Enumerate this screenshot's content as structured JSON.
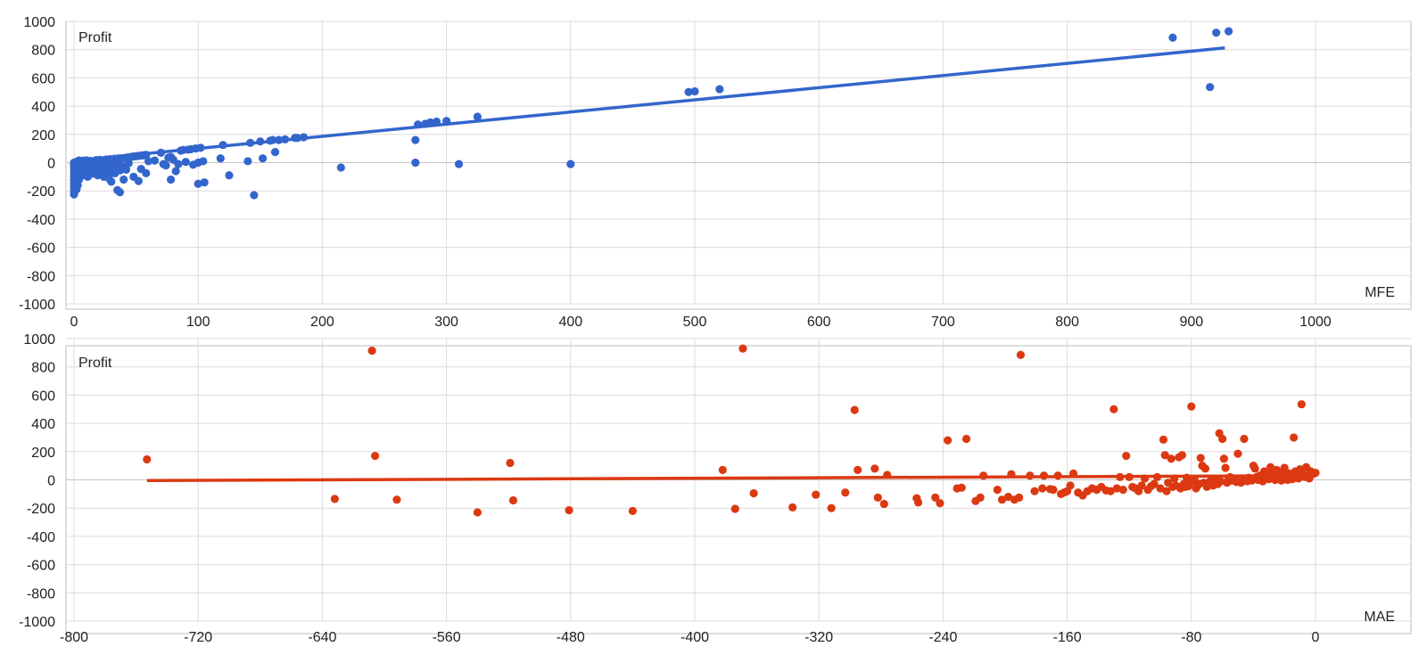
{
  "chart_data": [
    {
      "type": "scatter",
      "ylabel": "Profit",
      "xlabel": "MFE",
      "xlim": [
        0,
        1000
      ],
      "ylim": [
        -1000,
        1000
      ],
      "xticks": [
        "0",
        "100",
        "200",
        "300",
        "400",
        "500",
        "600",
        "700",
        "800",
        "900",
        "1000"
      ],
      "yticks": [
        "1000",
        "800",
        "600",
        "400",
        "200",
        "0",
        "-200",
        "-400",
        "-600",
        "-800",
        "-1000"
      ],
      "grid": true,
      "color": "#3366cc",
      "trendline": {
        "x": [
          0,
          927
        ],
        "y": [
          14,
          812
        ]
      },
      "points": [
        [
          0,
          -225
        ],
        [
          0,
          -200
        ],
        [
          0,
          -175
        ],
        [
          0,
          -150
        ],
        [
          0,
          -125
        ],
        [
          0,
          -100
        ],
        [
          0,
          -75
        ],
        [
          0,
          -50
        ],
        [
          0,
          -25
        ],
        [
          0,
          0
        ],
        [
          0,
          -10
        ],
        [
          1,
          -180
        ],
        [
          1,
          -140
        ],
        [
          1,
          -90
        ],
        [
          1,
          -60
        ],
        [
          1,
          -20
        ],
        [
          2,
          -190
        ],
        [
          2,
          -130
        ],
        [
          2,
          -70
        ],
        [
          2,
          -30
        ],
        [
          2,
          5
        ],
        [
          3,
          -160
        ],
        [
          3,
          -110
        ],
        [
          3,
          -40
        ],
        [
          3,
          10
        ],
        [
          4,
          -120
        ],
        [
          4,
          -80
        ],
        [
          4,
          -15
        ],
        [
          4,
          15
        ],
        [
          5,
          -100
        ],
        [
          5,
          -50
        ],
        [
          5,
          -5
        ],
        [
          6,
          -70
        ],
        [
          6,
          -20
        ],
        [
          6,
          12
        ],
        [
          7,
          -90
        ],
        [
          7,
          -35
        ],
        [
          7,
          8
        ],
        [
          8,
          -60
        ],
        [
          8,
          -10
        ],
        [
          8,
          14
        ],
        [
          9,
          -75
        ],
        [
          9,
          -25
        ],
        [
          10,
          -45
        ],
        [
          10,
          5
        ],
        [
          10,
          16
        ],
        [
          11,
          -100
        ],
        [
          11,
          -30
        ],
        [
          11,
          10
        ],
        [
          12,
          -65
        ],
        [
          12,
          -8
        ],
        [
          13,
          -50
        ],
        [
          13,
          12
        ],
        [
          14,
          -80
        ],
        [
          14,
          -20
        ],
        [
          15,
          -40
        ],
        [
          15,
          10
        ],
        [
          16,
          -55
        ],
        [
          16,
          -5
        ],
        [
          17,
          -70
        ],
        [
          17,
          8
        ],
        [
          18,
          -30
        ],
        [
          18,
          18
        ],
        [
          19,
          -90
        ],
        [
          19,
          -10
        ],
        [
          20,
          -50
        ],
        [
          20,
          12
        ],
        [
          21,
          -25
        ],
        [
          21,
          20
        ],
        [
          22,
          -60
        ],
        [
          22,
          0
        ],
        [
          23,
          -35
        ],
        [
          23,
          15
        ],
        [
          24,
          -100
        ],
        [
          24,
          -15
        ],
        [
          25,
          -70
        ],
        [
          25,
          10
        ],
        [
          26,
          -40
        ],
        [
          26,
          22
        ],
        [
          27,
          -20
        ],
        [
          27,
          5
        ],
        [
          28,
          -110
        ],
        [
          28,
          -45
        ],
        [
          29,
          -10
        ],
        [
          29,
          25
        ],
        [
          30,
          -135
        ],
        [
          30,
          -60
        ],
        [
          31,
          -25
        ],
        [
          31,
          20
        ],
        [
          32,
          -50
        ],
        [
          32,
          8
        ],
        [
          33,
          -75
        ],
        [
          33,
          28
        ],
        [
          34,
          -30
        ],
        [
          34,
          12
        ],
        [
          35,
          -195
        ],
        [
          35,
          -40
        ],
        [
          36,
          -15
        ],
        [
          36,
          30
        ],
        [
          37,
          -210
        ],
        [
          37,
          -55
        ],
        [
          38,
          -20
        ],
        [
          38,
          30
        ],
        [
          40,
          -120
        ],
        [
          40,
          32
        ],
        [
          42,
          -50
        ],
        [
          42,
          35
        ],
        [
          44,
          -5
        ],
        [
          44,
          38
        ],
        [
          46,
          40
        ],
        [
          48,
          -100
        ],
        [
          48,
          44
        ],
        [
          50,
          45
        ],
        [
          52,
          -130
        ],
        [
          52,
          48
        ],
        [
          54,
          -45
        ],
        [
          54,
          50
        ],
        [
          56,
          52
        ],
        [
          58,
          -75
        ],
        [
          58,
          55
        ],
        [
          60,
          10
        ],
        [
          65,
          15
        ],
        [
          70,
          70
        ],
        [
          72,
          -10
        ],
        [
          74,
          -20
        ],
        [
          76,
          35
        ],
        [
          78,
          -120
        ],
        [
          78,
          40
        ],
        [
          80,
          20
        ],
        [
          82,
          -60
        ],
        [
          84,
          -10
        ],
        [
          86,
          85
        ],
        [
          88,
          90
        ],
        [
          90,
          5
        ],
        [
          92,
          92
        ],
        [
          94,
          95
        ],
        [
          96,
          -15
        ],
        [
          98,
          100
        ],
        [
          100,
          0
        ],
        [
          100,
          -150
        ],
        [
          102,
          105
        ],
        [
          104,
          10
        ],
        [
          105,
          -140
        ],
        [
          118,
          30
        ],
        [
          120,
          125
        ],
        [
          125,
          -90
        ],
        [
          140,
          10
        ],
        [
          142,
          140
        ],
        [
          145,
          -230
        ],
        [
          150,
          150
        ],
        [
          152,
          30
        ],
        [
          158,
          155
        ],
        [
          160,
          160
        ],
        [
          162,
          75
        ],
        [
          165,
          160
        ],
        [
          170,
          165
        ],
        [
          178,
          175
        ],
        [
          180,
          175
        ],
        [
          185,
          180
        ],
        [
          215,
          -35
        ],
        [
          275,
          160
        ],
        [
          275,
          0
        ],
        [
          277,
          270
        ],
        [
          283,
          275
        ],
        [
          287,
          285
        ],
        [
          292,
          290
        ],
        [
          300,
          295
        ],
        [
          310,
          -10
        ],
        [
          325,
          325
        ],
        [
          400,
          -10
        ],
        [
          495,
          500
        ],
        [
          500,
          505
        ],
        [
          520,
          520
        ],
        [
          885,
          885
        ],
        [
          915,
          535
        ],
        [
          920,
          920
        ],
        [
          930,
          930
        ]
      ]
    },
    {
      "type": "scatter",
      "ylabel": "Profit",
      "xlabel": "MAE",
      "xlim": [
        -800,
        0
      ],
      "ylim": [
        -1000,
        1000
      ],
      "xticks": [
        "-800",
        "-720",
        "-640",
        "-560",
        "-480",
        "-400",
        "-320",
        "-240",
        "-160",
        "-80",
        "0"
      ],
      "yticks": [
        "1000",
        "800",
        "600",
        "400",
        "200",
        "0",
        "-200",
        "-400",
        "-600",
        "-800",
        "-1000"
      ],
      "grid": true,
      "color": "#dc3912",
      "trendline": {
        "x": [
          -753,
          0
        ],
        "y": [
          -5,
          30
        ]
      },
      "points": [
        [
          -753,
          145
        ],
        [
          -632,
          -135
        ],
        [
          -608,
          915
        ],
        [
          -606,
          170
        ],
        [
          -592,
          -140
        ],
        [
          -540,
          -230
        ],
        [
          -519,
          120
        ],
        [
          -517,
          -145
        ],
        [
          -481,
          -215
        ],
        [
          -440,
          -220
        ],
        [
          -382,
          70
        ],
        [
          -374,
          -205
        ],
        [
          -369,
          930
        ],
        [
          -362,
          -95
        ],
        [
          -337,
          -195
        ],
        [
          -322,
          -105
        ],
        [
          -312,
          -200
        ],
        [
          -303,
          -90
        ],
        [
          -297,
          495
        ],
        [
          -295,
          70
        ],
        [
          -284,
          80
        ],
        [
          -282,
          -125
        ],
        [
          -278,
          -170
        ],
        [
          -276,
          35
        ],
        [
          -257,
          -130
        ],
        [
          -256,
          -160
        ],
        [
          -245,
          -125
        ],
        [
          -242,
          -165
        ],
        [
          -237,
          280
        ],
        [
          -231,
          -60
        ],
        [
          -228,
          -55
        ],
        [
          -225,
          290
        ],
        [
          -219,
          -150
        ],
        [
          -216,
          -125
        ],
        [
          -214,
          30
        ],
        [
          -205,
          -70
        ],
        [
          -202,
          -140
        ],
        [
          -198,
          -120
        ],
        [
          -196,
          40
        ],
        [
          -194,
          -140
        ],
        [
          -191,
          -125
        ],
        [
          -190,
          885
        ],
        [
          -184,
          30
        ],
        [
          -181,
          -80
        ],
        [
          -176,
          -60
        ],
        [
          -175,
          30
        ],
        [
          -171,
          -65
        ],
        [
          -169,
          -70
        ],
        [
          -166,
          30
        ],
        [
          -164,
          -100
        ],
        [
          -162,
          -90
        ],
        [
          -160,
          -80
        ],
        [
          -158,
          -40
        ],
        [
          -156,
          45
        ],
        [
          -153,
          -90
        ],
        [
          -150,
          -110
        ],
        [
          -147,
          -80
        ],
        [
          -144,
          -60
        ],
        [
          -141,
          -70
        ],
        [
          -138,
          -50
        ],
        [
          -135,
          -75
        ],
        [
          -132,
          -80
        ],
        [
          -130,
          500
        ],
        [
          -128,
          -60
        ],
        [
          -126,
          20
        ],
        [
          -124,
          -70
        ],
        [
          -122,
          170
        ],
        [
          -120,
          20
        ],
        [
          -118,
          -50
        ],
        [
          -116,
          -60
        ],
        [
          -114,
          -80
        ],
        [
          -112,
          -40
        ],
        [
          -110,
          10
        ],
        [
          -108,
          -70
        ],
        [
          -106,
          -45
        ],
        [
          -104,
          -30
        ],
        [
          -102,
          20
        ],
        [
          -100,
          -60
        ],
        [
          -98,
          285
        ],
        [
          -97,
          175
        ],
        [
          -96,
          -80
        ],
        [
          -95,
          -20
        ],
        [
          -93,
          150
        ],
        [
          -92,
          -50
        ],
        [
          -91,
          10
        ],
        [
          -90,
          -40
        ],
        [
          -88,
          160
        ],
        [
          -87,
          -60
        ],
        [
          -86,
          175
        ],
        [
          -85,
          -30
        ],
        [
          -84,
          -50
        ],
        [
          -83,
          15
        ],
        [
          -82,
          -45
        ],
        [
          -81,
          -20
        ],
        [
          -80,
          520
        ],
        [
          -79,
          -10
        ],
        [
          -78,
          5
        ],
        [
          -77,
          -60
        ],
        [
          -76,
          -40
        ],
        [
          -75,
          -30
        ],
        [
          -74,
          155
        ],
        [
          -73,
          100
        ],
        [
          -72,
          -20
        ],
        [
          -71,
          80
        ],
        [
          -70,
          -50
        ],
        [
          -69,
          -25
        ],
        [
          -68,
          -10
        ],
        [
          -67,
          10
        ],
        [
          -66,
          -40
        ],
        [
          -65,
          -20
        ],
        [
          -64,
          0
        ],
        [
          -63,
          -30
        ],
        [
          -62,
          330
        ],
        [
          -61,
          -10
        ],
        [
          -60,
          290
        ],
        [
          -59,
          150
        ],
        [
          -58,
          85
        ],
        [
          -57,
          -20
        ],
        [
          -56,
          5
        ],
        [
          -55,
          20
        ],
        [
          -54,
          -5
        ],
        [
          -53,
          0
        ],
        [
          -52,
          10
        ],
        [
          -51,
          -15
        ],
        [
          -50,
          185
        ],
        [
          -49,
          5
        ],
        [
          -48,
          -20
        ],
        [
          -47,
          10
        ],
        [
          -46,
          290
        ],
        [
          -45,
          0
        ],
        [
          -44,
          -10
        ],
        [
          -43,
          15
        ],
        [
          -42,
          5
        ],
        [
          -41,
          -5
        ],
        [
          -40,
          100
        ],
        [
          -39,
          80
        ],
        [
          -38,
          20
        ],
        [
          -37,
          0
        ],
        [
          -36,
          30
        ],
        [
          -35,
          10
        ],
        [
          -34,
          -10
        ],
        [
          -33,
          60
        ],
        [
          -32,
          40
        ],
        [
          -31,
          15
        ],
        [
          -30,
          5
        ],
        [
          -29,
          90
        ],
        [
          -28,
          50
        ],
        [
          -27,
          20
        ],
        [
          -26,
          0
        ],
        [
          -25,
          70
        ],
        [
          -24,
          30
        ],
        [
          -23,
          10
        ],
        [
          -22,
          -5
        ],
        [
          -21,
          55
        ],
        [
          -20,
          85
        ],
        [
          -19,
          25
        ],
        [
          -18,
          0
        ],
        [
          -17,
          45
        ],
        [
          -16,
          20
        ],
        [
          -15,
          5
        ],
        [
          -14,
          300
        ],
        [
          -13,
          60
        ],
        [
          -12,
          30
        ],
        [
          -11,
          10
        ],
        [
          -10,
          75
        ],
        [
          -9,
          535
        ],
        [
          -8,
          40
        ],
        [
          -7,
          20
        ],
        [
          -6,
          90
        ],
        [
          -5,
          30
        ],
        [
          -4,
          10
        ],
        [
          -3,
          60
        ],
        [
          -2,
          40
        ],
        [
          -1,
          45
        ],
        [
          0,
          50
        ]
      ]
    }
  ]
}
